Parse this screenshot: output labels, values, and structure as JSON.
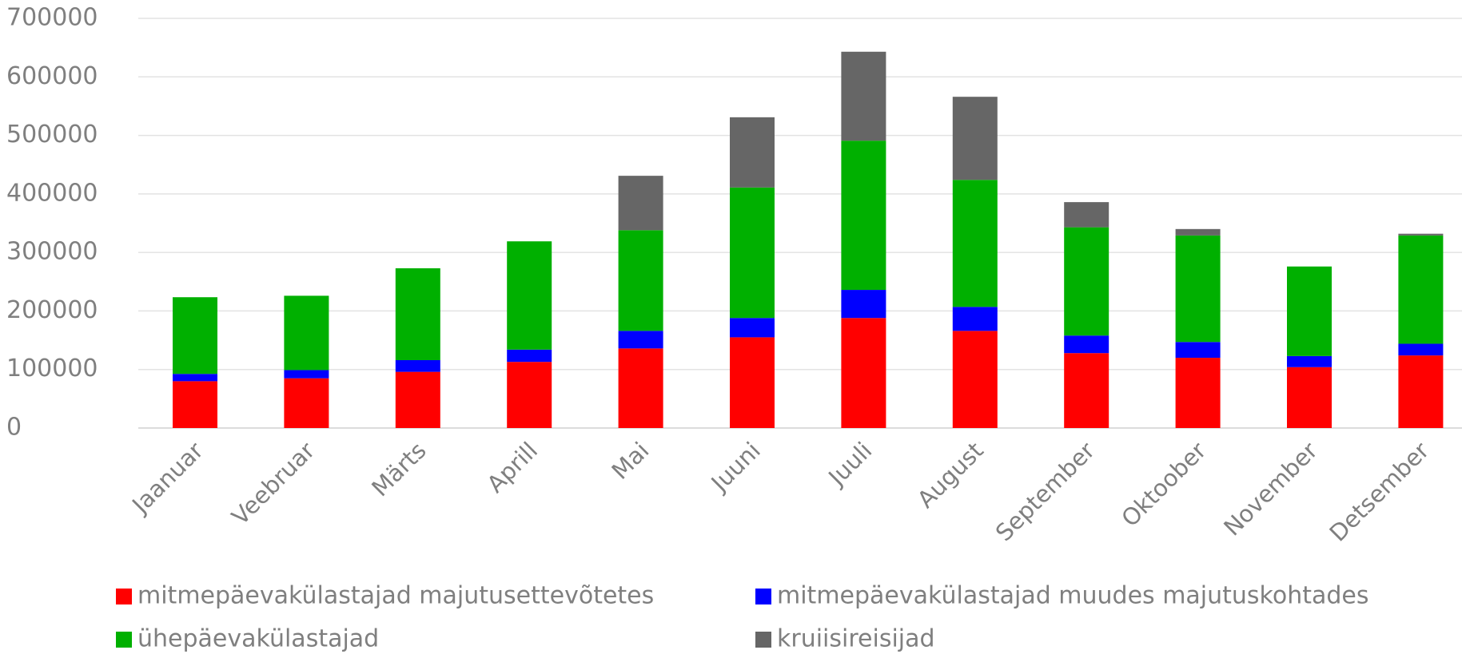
{
  "chart_data": {
    "type": "stacked_bar",
    "categories": [
      "Jaanuar",
      "Veebruar",
      "Märts",
      "Aprill",
      "Mai",
      "Juuni",
      "Juuli",
      "August",
      "September",
      "Oktoober",
      "November",
      "Detsember"
    ],
    "series": [
      {
        "name": "mitmepäevakülastajad majutusettevõtetes",
        "color": "#ff0000",
        "values": [
          80000,
          85000,
          96000,
          113000,
          136000,
          155000,
          188000,
          166000,
          128000,
          120000,
          104000,
          124000
        ]
      },
      {
        "name": "mitmepäevakülastajad muudes majutuskohtades",
        "color": "#0000ff",
        "values": [
          12500,
          14000,
          20000,
          21000,
          30000,
          33000,
          48000,
          41000,
          30000,
          27000,
          19000,
          20000
        ]
      },
      {
        "name": "ühepäevakülastajad",
        "color": "#00b000",
        "values": [
          131000,
          127000,
          157000,
          185000,
          172000,
          223000,
          255000,
          217000,
          185000,
          182000,
          153000,
          185000
        ]
      },
      {
        "name": "kruiisireisijad",
        "color": "#666666",
        "values": [
          0,
          0,
          0,
          0,
          93000,
          120000,
          152000,
          142000,
          43000,
          11000,
          0,
          3000
        ]
      }
    ],
    "ylim": [
      0,
      700000
    ],
    "yticks": [
      0,
      100000,
      200000,
      300000,
      400000,
      500000,
      600000,
      700000
    ],
    "grid": true,
    "legend": "bottom"
  }
}
